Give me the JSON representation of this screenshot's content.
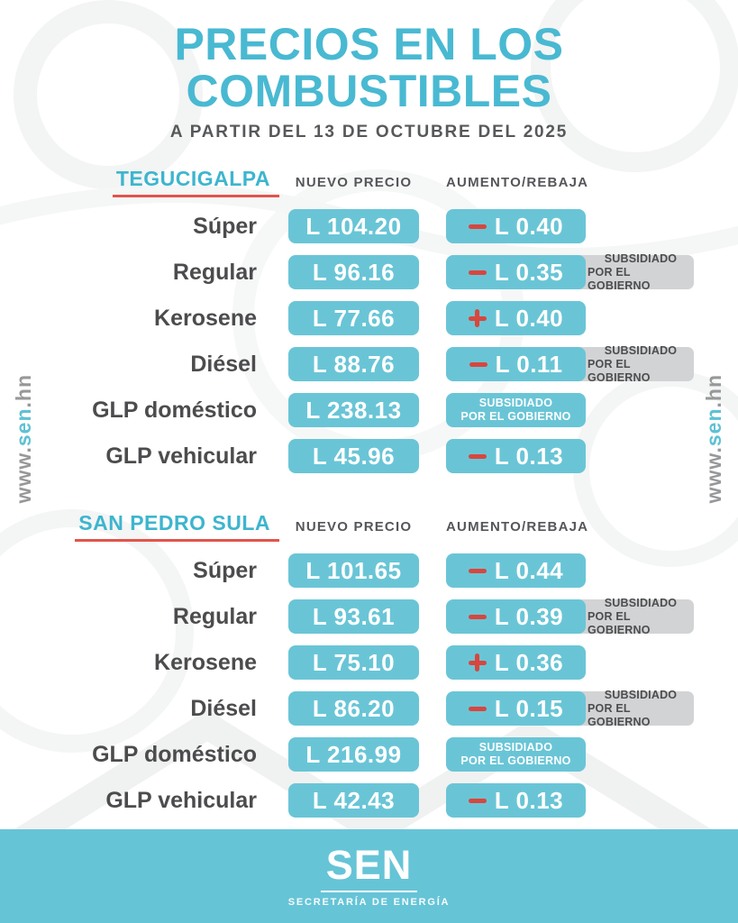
{
  "title": {
    "line1": "PRECIOS EN LOS",
    "line2": "COMBUSTIBLES"
  },
  "subtitle": "A PARTIR DEL 13 DE OCTUBRE DEL 2025",
  "column_headers": {
    "new_price": "NUEVO PRECIO",
    "change": "AUMENTO/REBAJA"
  },
  "subsidy_label": {
    "line1": "SUBSIDIADO",
    "line2": "POR EL GOBIERNO"
  },
  "website": {
    "prefix": "www.",
    "highlight": "sen",
    "suffix": ".hn"
  },
  "colors": {
    "accent_cyan": "#66c4d7",
    "title_cyan": "#49b9d2",
    "accent_red": "#d8463e",
    "underline_red": "#e2544b",
    "text_dark": "#4c4c4e",
    "tag_gray": "#d2d3d4"
  },
  "sections": [
    {
      "city": "TEGUCIGALPA",
      "rows": [
        {
          "fuel": "Súper",
          "price": "L 104.20",
          "sign": "minus",
          "change": "L 0.40",
          "subsidized": false,
          "subsidy_only": false
        },
        {
          "fuel": "Regular",
          "price": "L 96.16",
          "sign": "minus",
          "change": "L 0.35",
          "subsidized": true,
          "subsidy_only": false
        },
        {
          "fuel": "Kerosene",
          "price": "L 77.66",
          "sign": "plus",
          "change": "L 0.40",
          "subsidized": false,
          "subsidy_only": false
        },
        {
          "fuel": "Diésel",
          "price": "L 88.76",
          "sign": "minus",
          "change": "L 0.11",
          "subsidized": true,
          "subsidy_only": false
        },
        {
          "fuel": "GLP doméstico",
          "price": "L 238.13",
          "sign": null,
          "change": null,
          "subsidized": false,
          "subsidy_only": true
        },
        {
          "fuel": "GLP vehicular",
          "price": "L 45.96",
          "sign": "minus",
          "change": "L 0.13",
          "subsidized": false,
          "subsidy_only": false
        }
      ]
    },
    {
      "city": "SAN PEDRO SULA",
      "rows": [
        {
          "fuel": "Súper",
          "price": "L 101.65",
          "sign": "minus",
          "change": "L 0.44",
          "subsidized": false,
          "subsidy_only": false
        },
        {
          "fuel": "Regular",
          "price": "L 93.61",
          "sign": "minus",
          "change": "L 0.39",
          "subsidized": true,
          "subsidy_only": false
        },
        {
          "fuel": "Kerosene",
          "price": "L 75.10",
          "sign": "plus",
          "change": "L 0.36",
          "subsidized": false,
          "subsidy_only": false
        },
        {
          "fuel": "Diésel",
          "price": "L 86.20",
          "sign": "minus",
          "change": "L 0.15",
          "subsidized": true,
          "subsidy_only": false
        },
        {
          "fuel": "GLP doméstico",
          "price": "L 216.99",
          "sign": null,
          "change": null,
          "subsidized": false,
          "subsidy_only": true
        },
        {
          "fuel": "GLP vehicular",
          "price": "L 42.43",
          "sign": "minus",
          "change": "L 0.13",
          "subsidized": false,
          "subsidy_only": false
        }
      ]
    }
  ],
  "footer": {
    "logo": "SEN",
    "org": "SECRETARÍA DE ENERGÍA"
  }
}
